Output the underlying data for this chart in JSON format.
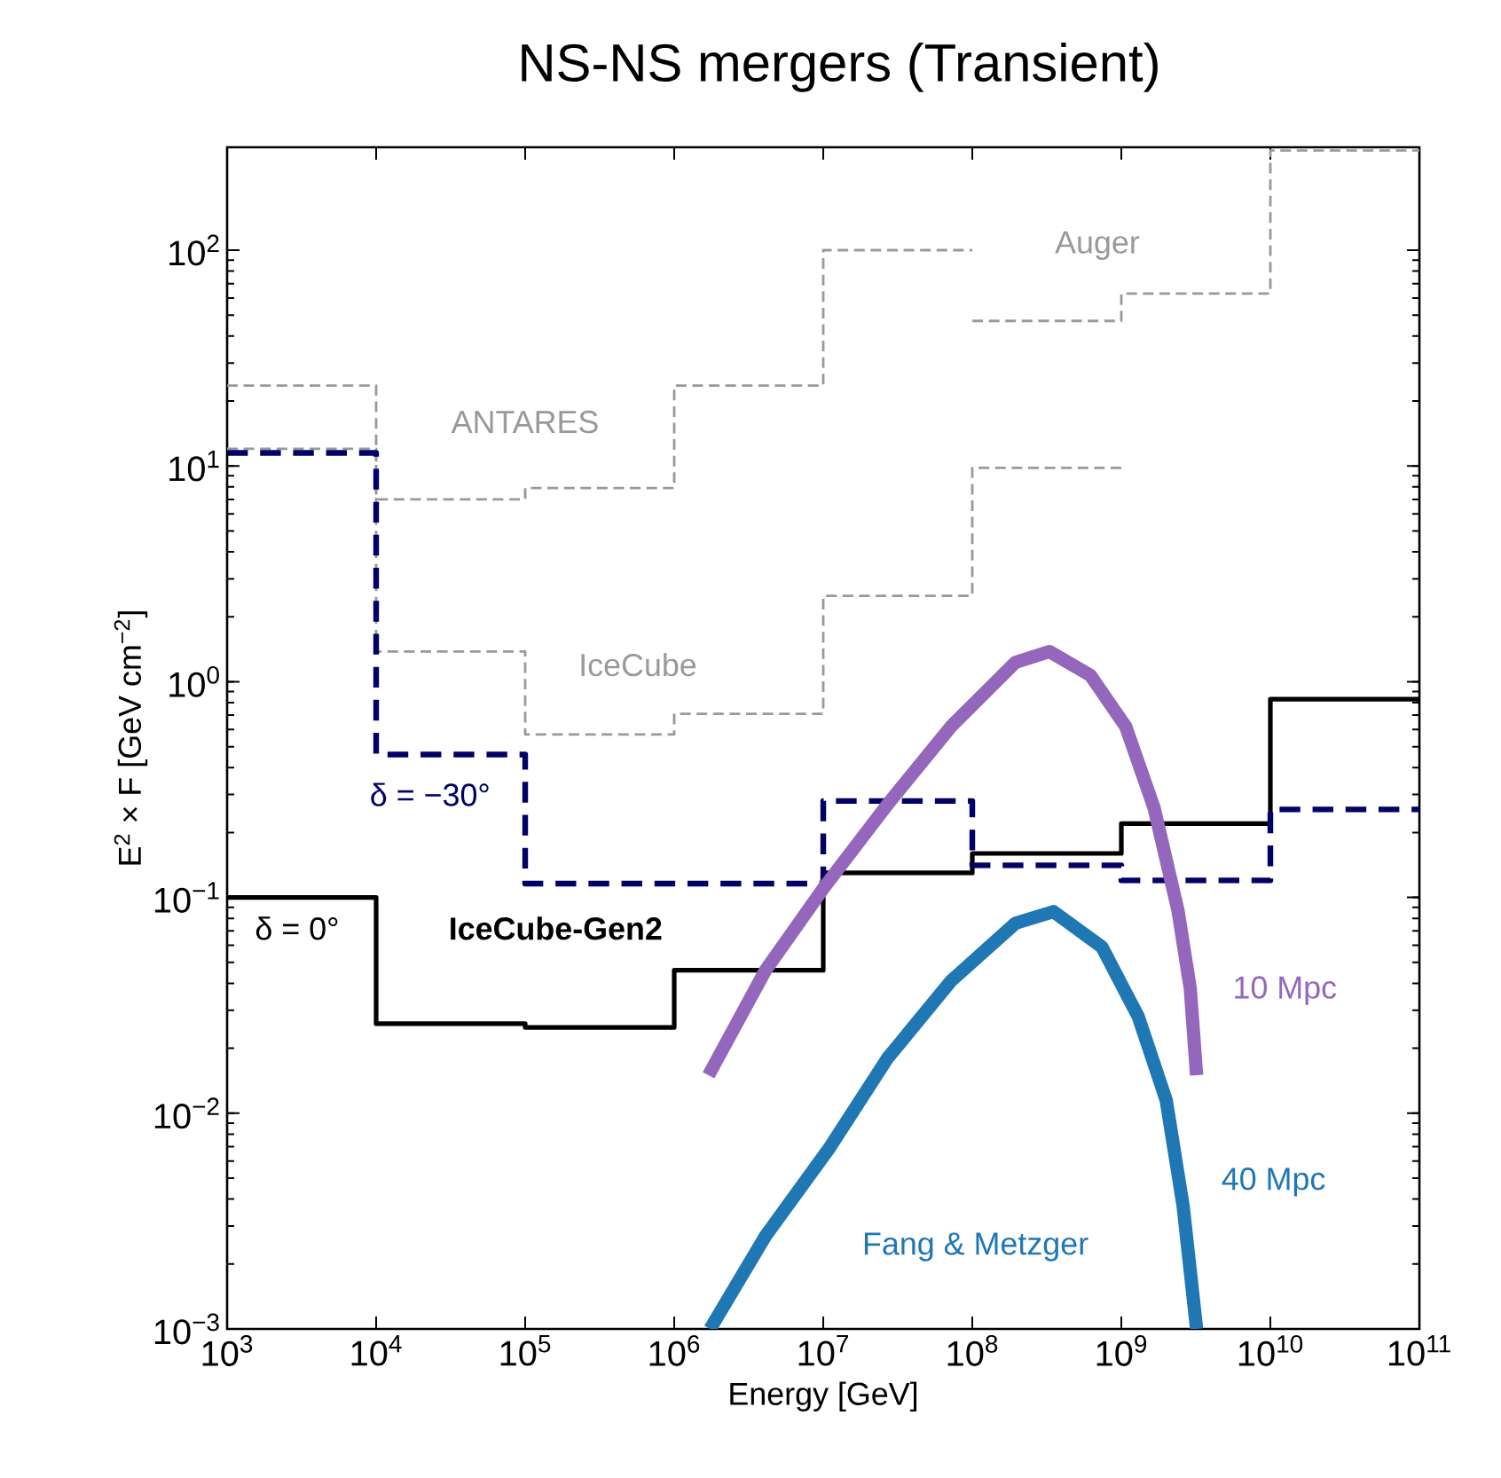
{
  "chart_data": {
    "type": "step",
    "title": "NS-NS mergers (Transient)",
    "xlabel": "Energy [GeV]",
    "ylabel": "E$^{2}$ × F [GeV cm$^{−2}$]",
    "log": "xy",
    "xlim": [
      1000,
      100000000000
    ],
    "ylim": [
      0.001,
      300
    ],
    "xticks": [
      {
        "value": 1000,
        "label": "10$^{3}$"
      },
      {
        "value": 10000,
        "label": "10$^{4}$"
      },
      {
        "value": 100000,
        "label": "10$^{5}$"
      },
      {
        "value": 1000000,
        "label": "10$^{6}$"
      },
      {
        "value": 10000000,
        "label": "10$^{7}$"
      },
      {
        "value": 100000000,
        "label": "10$^{8}$"
      },
      {
        "value": 1000000000,
        "label": "10$^{9}$"
      },
      {
        "value": 10000000000,
        "label": "10$^{10}$"
      },
      {
        "value": 100000000000,
        "label": "10$^{11}$"
      }
    ],
    "yticks": [
      {
        "value": 0.001,
        "label": "10$^{−3}$"
      },
      {
        "value": 0.01,
        "label": "10$^{−2}$"
      },
      {
        "value": 0.1,
        "label": "10$^{−1}$"
      },
      {
        "value": 1,
        "label": "10$^{0}$"
      },
      {
        "value": 10,
        "label": "10$^{1}$"
      },
      {
        "value": 100,
        "label": "10$^{2}$"
      }
    ],
    "series": [
      {
        "name": "ANTARES",
        "color": "#999999",
        "line_style": "dashed",
        "x": [
          1000,
          10000,
          100000,
          1000000,
          10000000,
          100000000
        ],
        "values": [
          23.6,
          7.0,
          7.9,
          23.6,
          100,
          100
        ]
      },
      {
        "name": "Auger",
        "color": "#999999",
        "line_style": "dashed",
        "x": [
          100000000,
          1000000000,
          10000000000,
          100000000000
        ],
        "values": [
          47,
          63,
          290,
          290
        ]
      },
      {
        "name": "IceCube",
        "color": "#999999",
        "line_style": "dashed",
        "x": [
          1000,
          10000,
          100000,
          1000000,
          10000000,
          100000000,
          1000000000
        ],
        "values": [
          12,
          1.38,
          0.57,
          0.71,
          2.5,
          9.8,
          9.8
        ]
      },
      {
        "name": "δ = 0°",
        "color": "#000000",
        "line_style": "solid",
        "x": [
          1000,
          10000,
          100000,
          1000000,
          10000000,
          100000000,
          1000000000,
          10000000000,
          100000000000
        ],
        "values": [
          0.1,
          0.026,
          0.025,
          0.046,
          0.13,
          0.16,
          0.22,
          0.83,
          0.83
        ]
      },
      {
        "name": "δ = −30°",
        "color": "#000066",
        "line_style": "dashed",
        "x": [
          1000,
          10000,
          100000,
          1000000,
          10000000,
          100000000,
          1000000000,
          10000000000,
          100000000000
        ],
        "values": [
          11.5,
          0.46,
          0.116,
          0.116,
          0.28,
          0.141,
          0.12,
          0.256,
          0.256
        ]
      },
      {
        "name": "10 Mpc",
        "type": "line",
        "color": "#9467bd",
        "line_style": "solid",
        "x": [
          1700000,
          4100000,
          10000000,
          27000000,
          72000000,
          195000000,
          330000000,
          620000000,
          1070000000,
          1660000000,
          2400000000,
          2900000000,
          3200000000
        ],
        "values": [
          0.015,
          0.046,
          0.11,
          0.27,
          0.62,
          1.23,
          1.38,
          1.07,
          0.62,
          0.26,
          0.087,
          0.038,
          0.015
        ]
      },
      {
        "name": "40 Mpc",
        "type": "line",
        "color": "#1f77b4",
        "line_style": "solid",
        "x": [
          1740000,
          4100000,
          11000000,
          27000000,
          72000000,
          195000000,
          350000000,
          740000000,
          1300000000,
          2000000000,
          2600000000,
          3200000000
        ],
        "values": [
          0.001,
          0.0027,
          0.0069,
          0.018,
          0.041,
          0.076,
          0.086,
          0.059,
          0.028,
          0.0115,
          0.0037,
          0.001
        ]
      }
    ],
    "annotations": [
      "IceCube-Gen2",
      "Fang & Metzger"
    ]
  }
}
